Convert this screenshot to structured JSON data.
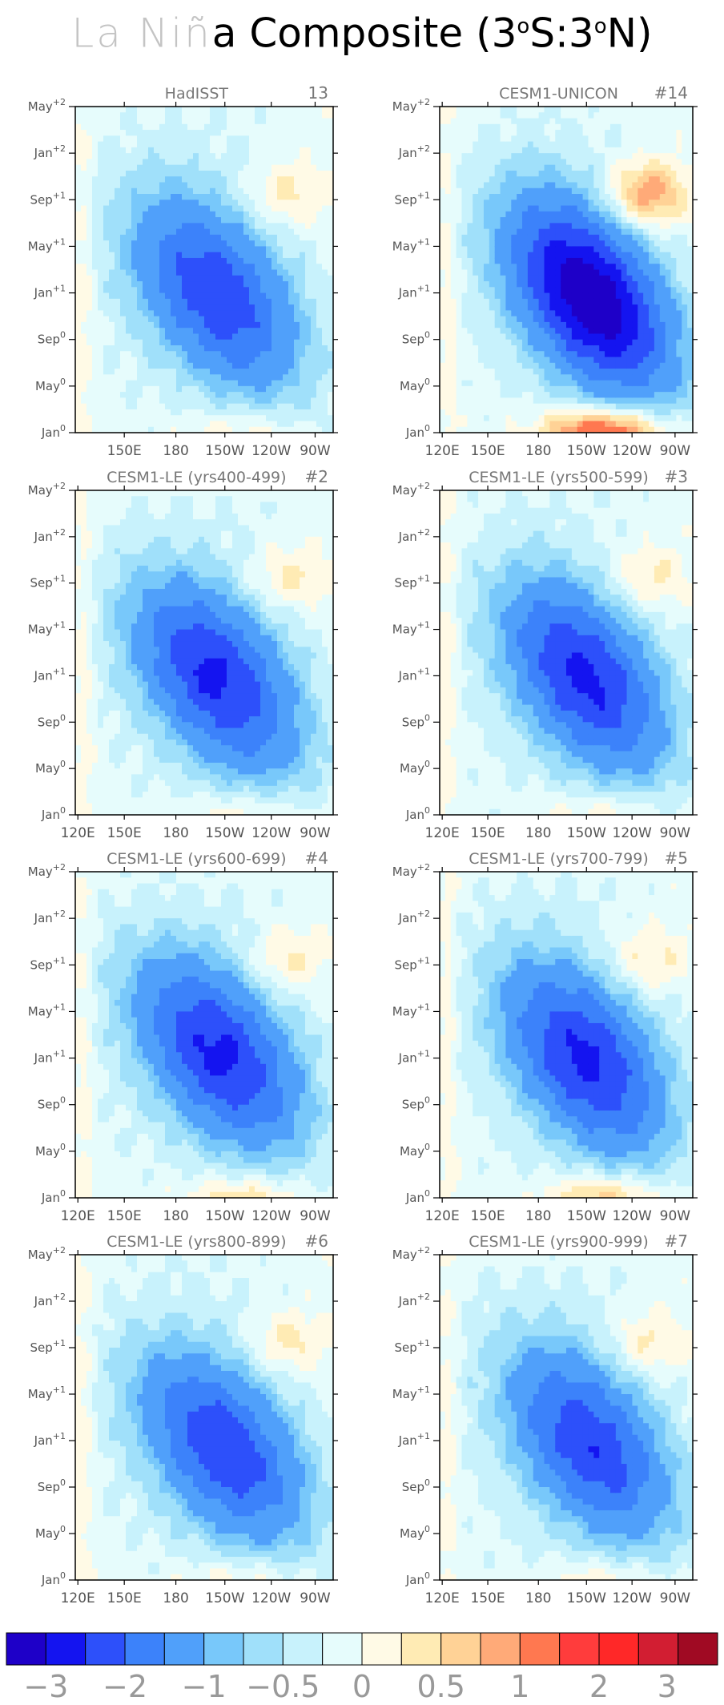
{
  "title": {
    "light_part": "La Niñ",
    "dark_part": "a Composite (3",
    "sup1": "o",
    "mid": "S:3",
    "sup2": "o",
    "end": "N)"
  },
  "chart_data": [
    {
      "type": "heatmap",
      "title": "HadISST",
      "tag": "13",
      "show_x_labels": true,
      "x_ticks": [
        "150E",
        "180",
        "150W",
        "120W",
        "90W"
      ],
      "y_ticks": [
        "Jan0",
        "May0",
        "Sep0",
        "Jan+1",
        "May+1",
        "Sep+1",
        "Jan+2",
        "May+2"
      ],
      "min_value": -2.1,
      "center": [
        0.55,
        0.42
      ]
    },
    {
      "type": "heatmap",
      "title": "CESM1-UNICON",
      "tag": "#14",
      "show_x_labels": true,
      "x_ticks": [
        "120E",
        "150E",
        "180",
        "150W",
        "120W",
        "90W"
      ],
      "y_ticks": [
        "Jan0",
        "May0",
        "Sep0",
        "Jan+1",
        "May+1",
        "Sep+1",
        "Jan+2",
        "May+2"
      ],
      "min_value": -3.2,
      "center": [
        0.6,
        0.41
      ],
      "warm_bottom_max": 1.8,
      "warm_topright_max": 1.2
    },
    {
      "type": "heatmap",
      "title": "CESM1-LE (yrs400-499)",
      "tag": "#2",
      "show_x_labels": true,
      "x_ticks": [
        "120E",
        "150E",
        "180",
        "150W",
        "120W",
        "90W"
      ],
      "y_ticks": [
        "Jan0",
        "May0",
        "Sep0",
        "Jan+1",
        "May+1",
        "Sep+1",
        "Jan+2",
        "May+2"
      ],
      "min_value": -2.3,
      "center": [
        0.55,
        0.42
      ]
    },
    {
      "type": "heatmap",
      "title": "CESM1-LE (yrs500-599)",
      "tag": "#3",
      "show_x_labels": true,
      "x_ticks": [
        "120E",
        "150E",
        "180",
        "150W",
        "120W",
        "90W"
      ],
      "y_ticks": [
        "Jan0",
        "May0",
        "Sep0",
        "Jan+1",
        "May+1",
        "Sep+1",
        "Jan+2",
        "May+2"
      ],
      "min_value": -2.3,
      "center": [
        0.58,
        0.42
      ]
    },
    {
      "type": "heatmap",
      "title": "CESM1-LE (yrs600-699)",
      "tag": "#4",
      "show_x_labels": true,
      "x_ticks": [
        "120E",
        "150E",
        "180",
        "150W",
        "120W",
        "90W"
      ],
      "y_ticks": [
        "Jan0",
        "May0",
        "Sep0",
        "Jan+1",
        "May+1",
        "Sep+1",
        "Jan+2",
        "May+2"
      ],
      "min_value": -2.3,
      "center": [
        0.56,
        0.44
      ],
      "warm_bottom_max": 0.7
    },
    {
      "type": "heatmap",
      "title": "CESM1-LE (yrs700-799)",
      "tag": "#5",
      "show_x_labels": true,
      "x_ticks": [
        "120E",
        "150E",
        "180",
        "150W",
        "120W",
        "90W"
      ],
      "y_ticks": [
        "Jan0",
        "May0",
        "Sep0",
        "Jan+1",
        "May+1",
        "Sep+1",
        "Jan+2",
        "May+2"
      ],
      "min_value": -2.3,
      "center": [
        0.58,
        0.42
      ],
      "warm_bottom_max": 0.9
    },
    {
      "type": "heatmap",
      "title": "CESM1-LE (yrs800-899)",
      "tag": "#6",
      "show_x_labels": true,
      "x_ticks": [
        "120E",
        "150E",
        "180",
        "150W",
        "120W",
        "90W"
      ],
      "y_ticks": [
        "Jan0",
        "May0",
        "Sep0",
        "Jan+1",
        "May+1",
        "Sep+1",
        "Jan+2",
        "May+2"
      ],
      "min_value": -2.1,
      "center": [
        0.58,
        0.4
      ]
    },
    {
      "type": "heatmap",
      "title": "CESM1-LE (yrs900-999)",
      "tag": "#7",
      "show_x_labels": true,
      "x_ticks": [
        "120E",
        "150E",
        "180",
        "150W",
        "120W",
        "90W"
      ],
      "y_ticks": [
        "Jan0",
        "May0",
        "Sep0",
        "Jan+1",
        "May+1",
        "Sep+1",
        "Jan+2",
        "May+2"
      ],
      "min_value": -2.1,
      "center": [
        0.6,
        0.41
      ]
    }
  ],
  "colorbar": {
    "levels": [
      -3,
      -2.5,
      -2,
      -1.5,
      -1,
      -0.75,
      -0.5,
      -0.25,
      0,
      0.25,
      0.5,
      0.75,
      1,
      1.5,
      2,
      2.5,
      3
    ],
    "colors": [
      "#1e00c8",
      "#1414f0",
      "#2d50fa",
      "#3c82fa",
      "#50a0fa",
      "#78c8fa",
      "#a0e0fa",
      "#c8f2fc",
      "#e6fcfc",
      "#fffae6",
      "#ffebb4",
      "#ffd296",
      "#ffaa78",
      "#ff7850",
      "#ff3c3c",
      "#ff2828",
      "#d21e32",
      "#a00a23"
    ],
    "labels": [
      "−3",
      "−2",
      "−1",
      "−0.5",
      "0",
      "0.5",
      "1",
      "2",
      "3"
    ]
  }
}
